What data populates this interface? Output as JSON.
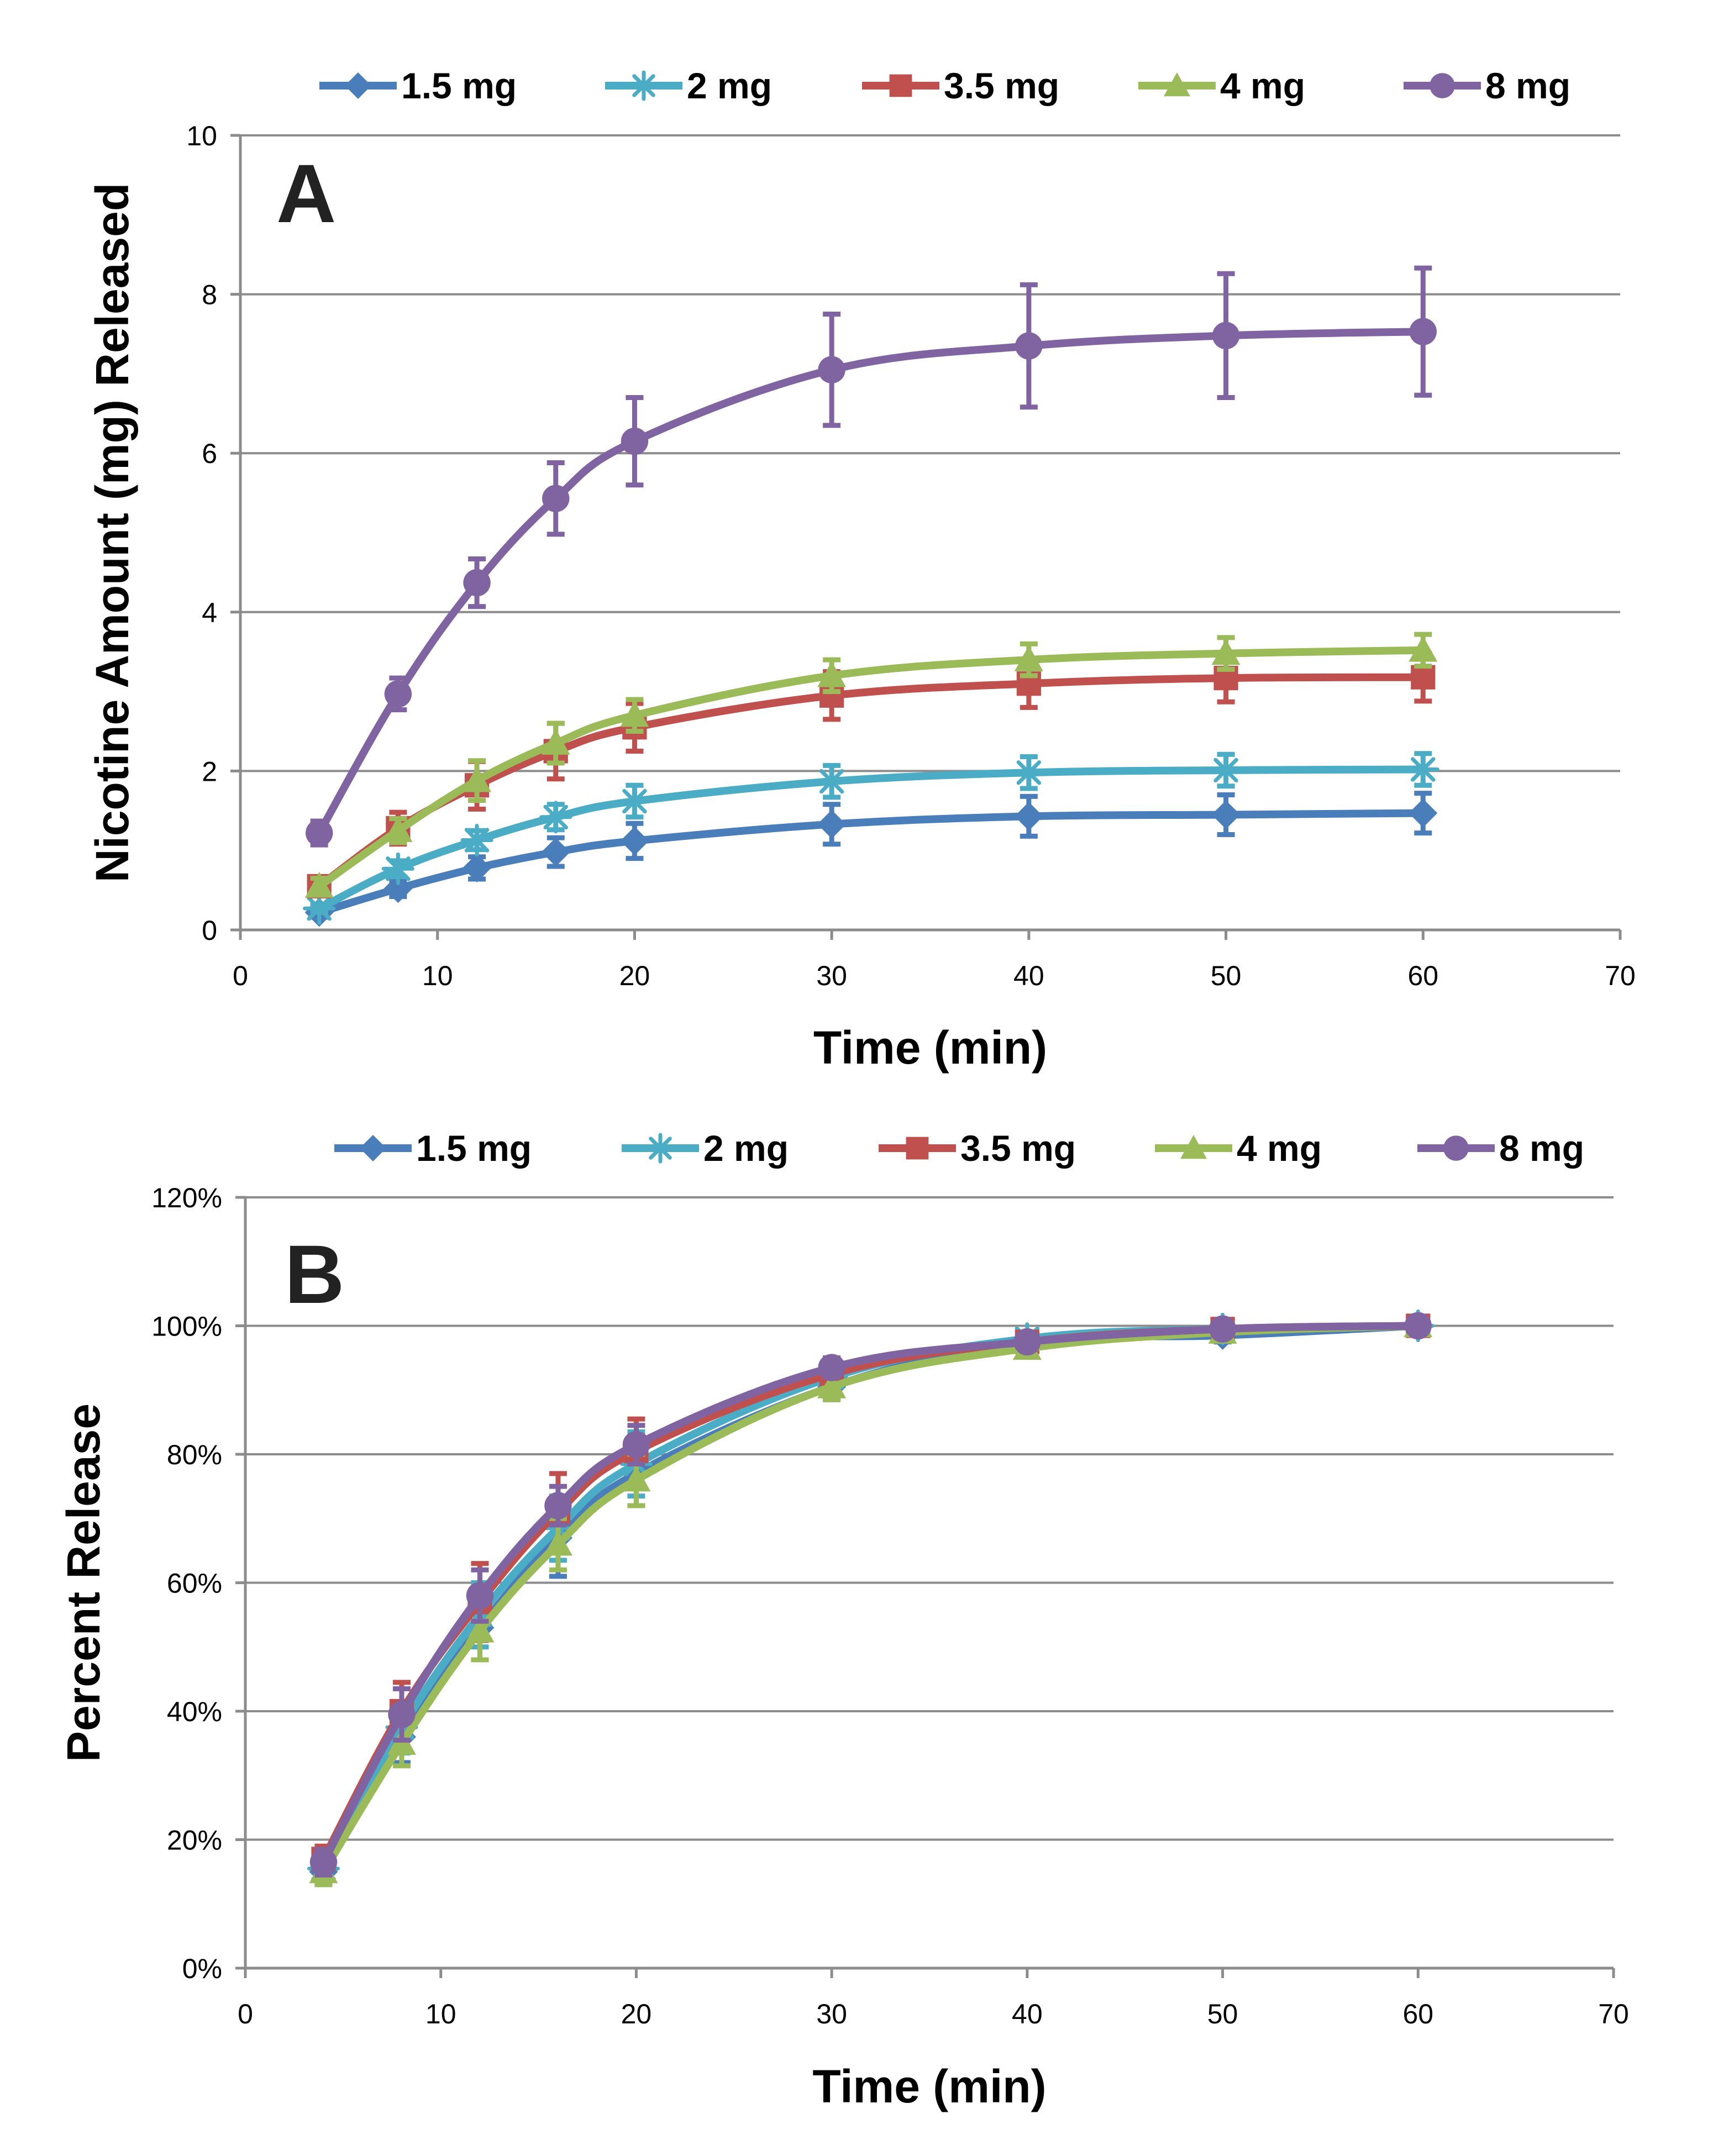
{
  "chart_data": [
    {
      "type": "line",
      "panel_label": "A",
      "xlabel": "Time (min)",
      "ylabel": "Nicotine Amount (mg) Released",
      "xlim": [
        0,
        70
      ],
      "ylim": [
        0,
        10
      ],
      "xticks": [
        0,
        10,
        20,
        30,
        40,
        50,
        60,
        70
      ],
      "xtick_labels": [
        "0",
        "10",
        "20",
        "30",
        "40",
        "50",
        "60",
        "70"
      ],
      "yticks": [
        0,
        2,
        4,
        6,
        8,
        10
      ],
      "ytick_labels": [
        "0",
        "2",
        "4",
        "6",
        "8",
        "10"
      ],
      "grid": true,
      "legend_position": "top",
      "x": [
        4,
        8,
        12,
        16,
        20,
        30,
        40,
        50,
        60
      ],
      "series": [
        {
          "name": "1.5 mg",
          "color": "#4A7EBB",
          "marker": "diamond",
          "values": [
            0.22,
            0.52,
            0.78,
            0.98,
            1.12,
            1.33,
            1.43,
            1.45,
            1.47
          ],
          "errors": [
            0.06,
            0.1,
            0.14,
            0.18,
            0.22,
            0.25,
            0.25,
            0.25,
            0.25
          ]
        },
        {
          "name": "2 mg",
          "color": "#4BACC6",
          "marker": "star",
          "values": [
            0.27,
            0.77,
            1.13,
            1.42,
            1.62,
            1.87,
            1.98,
            2.01,
            2.02
          ],
          "errors": [
            0.05,
            0.1,
            0.12,
            0.16,
            0.2,
            0.2,
            0.2,
            0.2,
            0.2
          ]
        },
        {
          "name": "3.5 mg",
          "color": "#C0504D",
          "marker": "square",
          "values": [
            0.55,
            1.28,
            1.82,
            2.25,
            2.55,
            2.95,
            3.1,
            3.17,
            3.18
          ],
          "errors": [
            0.1,
            0.2,
            0.3,
            0.35,
            0.3,
            0.3,
            0.3,
            0.3,
            0.3
          ]
        },
        {
          "name": "4 mg",
          "color": "#9BBB59",
          "marker": "triangle",
          "values": [
            0.55,
            1.25,
            1.88,
            2.35,
            2.7,
            3.2,
            3.4,
            3.48,
            3.52
          ],
          "errors": [
            0.1,
            0.15,
            0.25,
            0.25,
            0.2,
            0.2,
            0.2,
            0.2,
            0.2
          ]
        },
        {
          "name": "8 mg",
          "color": "#8064A2",
          "marker": "circle",
          "values": [
            1.22,
            2.97,
            4.37,
            5.43,
            6.15,
            7.05,
            7.35,
            7.48,
            7.53
          ],
          "errors": [
            0.15,
            0.2,
            0.3,
            0.45,
            0.55,
            0.7,
            0.77,
            0.78,
            0.8
          ]
        }
      ]
    },
    {
      "type": "line",
      "panel_label": "B",
      "xlabel": "Time (min)",
      "ylabel": "Percent Release",
      "xlim": [
        0,
        70
      ],
      "ylim": [
        0,
        120
      ],
      "xticks": [
        0,
        10,
        20,
        30,
        40,
        50,
        60,
        70
      ],
      "xtick_labels": [
        "0",
        "10",
        "20",
        "30",
        "40",
        "50",
        "60",
        "70"
      ],
      "yticks": [
        0,
        20,
        40,
        60,
        80,
        100,
        120
      ],
      "ytick_labels": [
        "0%",
        "20%",
        "40%",
        "60%",
        "80%",
        "100%",
        "120%"
      ],
      "grid": true,
      "legend_position": "top",
      "x": [
        4,
        8,
        12,
        16,
        20,
        30,
        40,
        50,
        60
      ],
      "series": [
        {
          "name": "1.5 mg",
          "color": "#4A7EBB",
          "marker": "diamond",
          "values": [
            15,
            36,
            53,
            67,
            77,
            90.5,
            97.5,
            98.5,
            100
          ],
          "errors": [
            2,
            4,
            5,
            6,
            5,
            2,
            1,
            1,
            0
          ]
        },
        {
          "name": "2 mg",
          "color": "#4BACC6",
          "marker": "star",
          "values": [
            15.5,
            37.5,
            55,
            68.5,
            78.5,
            92,
            98,
            99.5,
            100
          ],
          "errors": [
            2,
            4,
            5,
            5,
            5,
            2,
            1,
            1,
            0
          ]
        },
        {
          "name": "3.5 mg",
          "color": "#C0504D",
          "marker": "square",
          "values": [
            17,
            40,
            57,
            71,
            80.5,
            92.5,
            97.5,
            99.5,
            100
          ],
          "errors": [
            2,
            4.5,
            6,
            6,
            5,
            2.5,
            1,
            1,
            0
          ]
        },
        {
          "name": "4 mg",
          "color": "#9BBB59",
          "marker": "triangle",
          "values": [
            15,
            35,
            52.5,
            66,
            76,
            90.5,
            96.5,
            99,
            100
          ],
          "errors": [
            2,
            3.5,
            4.5,
            4,
            4,
            2,
            1,
            1,
            0
          ]
        },
        {
          "name": "8 mg",
          "color": "#8064A2",
          "marker": "circle",
          "values": [
            16.5,
            39.5,
            58,
            72,
            81.5,
            93.5,
            97.5,
            99.5,
            100
          ],
          "errors": [
            2,
            4,
            4,
            3,
            3,
            1.5,
            1,
            1,
            0
          ]
        }
      ]
    }
  ]
}
